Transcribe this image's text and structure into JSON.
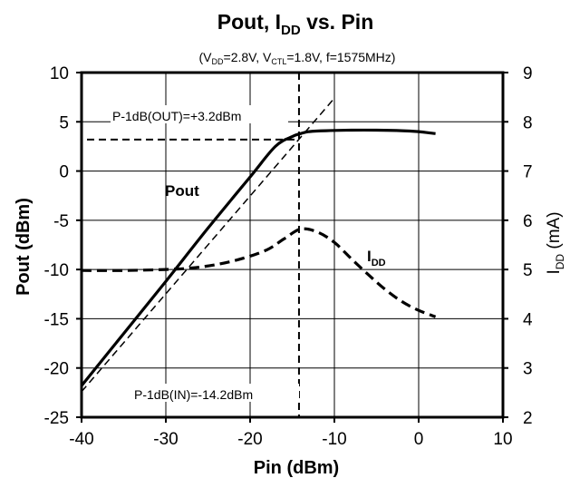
{
  "chart_data": {
    "type": "line",
    "title_parts": {
      "main1": "Pout, I",
      "sub": "DD",
      "main2": " vs. Pin"
    },
    "subtitle_parts": [
      "(V",
      "DD",
      "=2.8V, V",
      "CTL",
      "=1.8V, f=1575MHz)"
    ],
    "xlabel": "Pin (dBm)",
    "ylabel": "Pout (dBm)",
    "y2label_parts": {
      "main": "I",
      "sub": "DD",
      "tail": " (mA)"
    },
    "xlim": [
      -40,
      10
    ],
    "ylim": [
      -25,
      10
    ],
    "y2lim": [
      2,
      9
    ],
    "xticks": [
      -40,
      -30,
      -20,
      -10,
      0,
      10
    ],
    "yticks": [
      10,
      5,
      0,
      -5,
      -10,
      -15,
      -20,
      -25
    ],
    "y2ticks": [
      9,
      8,
      7,
      6,
      5,
      4,
      3,
      2
    ],
    "grid": true,
    "series": [
      {
        "name": "Pout",
        "axis": "left",
        "style": "solid",
        "x": [
          -40,
          -35,
          -30,
          -25,
          -20,
          -17,
          -15,
          -14,
          -13,
          -11,
          -8,
          -5,
          -2,
          0,
          2
        ],
        "values": [
          -21.8,
          -16.5,
          -11.2,
          -5.8,
          -0.6,
          2.5,
          3.5,
          3.8,
          4.0,
          4.1,
          4.15,
          4.15,
          4.1,
          4.0,
          3.8
        ]
      },
      {
        "name": "I",
        "name_sub": "DD",
        "axis": "right",
        "style": "dashed",
        "x": [
          -40,
          -35,
          -30,
          -27,
          -24,
          -21,
          -18,
          -16,
          -14,
          -12,
          -10,
          -8,
          -6,
          -4,
          -2,
          0,
          2
        ],
        "values": [
          4.98,
          4.98,
          5.0,
          5.03,
          5.1,
          5.22,
          5.4,
          5.62,
          5.82,
          5.76,
          5.55,
          5.22,
          4.9,
          4.6,
          4.35,
          4.17,
          4.04
        ]
      }
    ],
    "reference_line": {
      "style": "dashed",
      "x": [
        -40,
        -10
      ],
      "values": [
        -22.4,
        7.4
      ]
    },
    "markers": {
      "p1db_in_x": -14.2,
      "p1db_out_y": 3.2
    },
    "annotations": {
      "out_label": "P-1dB(OUT)=+3.2dBm",
      "in_label": "P-1dB(IN)=-14.2dBm",
      "pout_label": "Pout",
      "idd_label": "I",
      "idd_sub": "DD"
    }
  }
}
